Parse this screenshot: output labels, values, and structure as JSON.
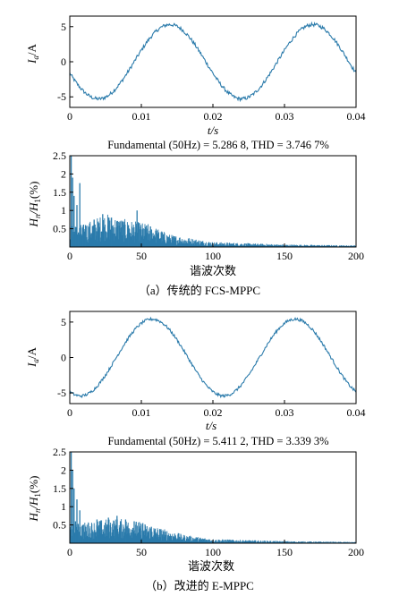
{
  "colors": {
    "trace": "#2b7bab",
    "axes": "#000000"
  },
  "chart_data": [
    {
      "type": "line",
      "panel": "a-current",
      "xlabel": "t/s",
      "ylabel_main": "I",
      "ylabel_sub": "a",
      "ylabel_unit": "/A",
      "xlim": [
        0,
        0.04
      ],
      "ylim": [
        -6.5,
        6.5
      ],
      "x_ticks": [
        "0",
        "0.01",
        "0.02",
        "0.03",
        "0.04"
      ],
      "x_tick_values": [
        0,
        0.01,
        0.02,
        0.03,
        0.04
      ],
      "y_ticks": [
        "5",
        "0",
        "-5"
      ],
      "y_tick_values": [
        5,
        0,
        -5
      ],
      "series": [
        {
          "amplitude": 5.29,
          "frequency_hz": 50,
          "phase_deg": 198,
          "noise": 0.25
        }
      ],
      "annotation": "Fundamental (50Hz) = 5.286 8,  THD = 3.746 7%"
    },
    {
      "type": "bar",
      "panel": "a-spectrum",
      "xlabel": "谐波次数",
      "ylabel_main": "H",
      "ylabel_sub": "n",
      "ylabel_mid": "/H",
      "ylabel_sub2": "1",
      "ylabel_unit": "(%)",
      "xlim": [
        0,
        200
      ],
      "ylim": [
        0,
        2.5
      ],
      "x_ticks": [
        "0",
        "50",
        "100",
        "150",
        "200"
      ],
      "x_tick_values": [
        0,
        50,
        100,
        150,
        200
      ],
      "y_ticks": [
        "2.5",
        "2",
        "1.5",
        "1",
        "0.5"
      ],
      "y_tick_values": [
        2.5,
        2.0,
        1.5,
        1.0,
        0.5
      ],
      "spikes": [
        [
          1,
          2.5
        ],
        [
          2,
          1.9
        ],
        [
          3,
          1.4
        ],
        [
          4,
          0.55
        ],
        [
          5,
          1.15
        ],
        [
          6,
          0.4
        ],
        [
          7,
          1.75
        ],
        [
          9,
          0.5
        ],
        [
          11,
          0.6
        ],
        [
          17,
          0.75
        ],
        [
          23,
          0.9
        ],
        [
          29,
          0.8
        ],
        [
          35,
          0.7
        ],
        [
          41,
          0.6
        ],
        [
          47,
          1.0
        ],
        [
          53,
          0.55
        ],
        [
          60,
          0.45
        ]
      ],
      "envelope": [
        [
          0,
          0.5
        ],
        [
          10,
          0.55
        ],
        [
          25,
          0.8
        ],
        [
          40,
          0.65
        ],
        [
          55,
          0.55
        ],
        [
          70,
          0.3
        ],
        [
          100,
          0.12
        ],
        [
          150,
          0.06
        ],
        [
          200,
          0.04
        ]
      ],
      "caption": "（a）传统的 FCS-MPPC"
    },
    {
      "type": "line",
      "panel": "b-current",
      "xlabel": "t/s",
      "ylabel_main": "I",
      "ylabel_sub": "a",
      "ylabel_unit": "/A",
      "xlim": [
        0,
        0.04
      ],
      "ylim": [
        -6.5,
        6.5
      ],
      "x_ticks": [
        "0",
        "0.01",
        "0.02",
        "0.03",
        "0.04"
      ],
      "x_tick_values": [
        0,
        0.01,
        0.02,
        0.03,
        0.04
      ],
      "y_ticks": [
        "5",
        "0",
        "-5"
      ],
      "y_tick_values": [
        5,
        0,
        -5
      ],
      "series": [
        {
          "amplitude": 5.41,
          "frequency_hz": 50,
          "phase_deg": 243,
          "noise": 0.2
        }
      ],
      "annotation": "Fundamental (50Hz) = 5.411 2,  THD = 3.339 3%"
    },
    {
      "type": "bar",
      "panel": "b-spectrum",
      "xlabel": "谐波次数",
      "ylabel_main": "H",
      "ylabel_sub": "n",
      "ylabel_mid": "/H",
      "ylabel_sub2": "1",
      "ylabel_unit": "(%)",
      "xlim": [
        0,
        200
      ],
      "ylim": [
        0,
        2.5
      ],
      "x_ticks": [
        "0",
        "50",
        "100",
        "150",
        "200"
      ],
      "x_tick_values": [
        0,
        50,
        100,
        150,
        200
      ],
      "y_ticks": [
        "2.5",
        "2",
        "1.5",
        "1",
        "0.5"
      ],
      "y_tick_values": [
        2.5,
        2.0,
        1.5,
        1.0,
        0.5
      ],
      "spikes": [
        [
          1,
          2.5
        ],
        [
          2,
          2.0
        ],
        [
          3,
          1.5
        ],
        [
          4,
          0.6
        ],
        [
          5,
          1.2
        ],
        [
          6,
          0.45
        ],
        [
          7,
          0.9
        ],
        [
          9,
          0.5
        ],
        [
          13,
          0.55
        ],
        [
          19,
          0.65
        ],
        [
          27,
          0.7
        ],
        [
          33,
          0.75
        ],
        [
          39,
          0.65
        ],
        [
          45,
          0.6
        ],
        [
          51,
          0.55
        ],
        [
          57,
          0.45
        ]
      ],
      "envelope": [
        [
          0,
          0.45
        ],
        [
          10,
          0.5
        ],
        [
          30,
          0.6
        ],
        [
          45,
          0.55
        ],
        [
          60,
          0.4
        ],
        [
          80,
          0.2
        ],
        [
          100,
          0.1
        ],
        [
          150,
          0.05
        ],
        [
          200,
          0.03
        ]
      ],
      "caption": "（b）改进的 E-MPPC"
    }
  ]
}
